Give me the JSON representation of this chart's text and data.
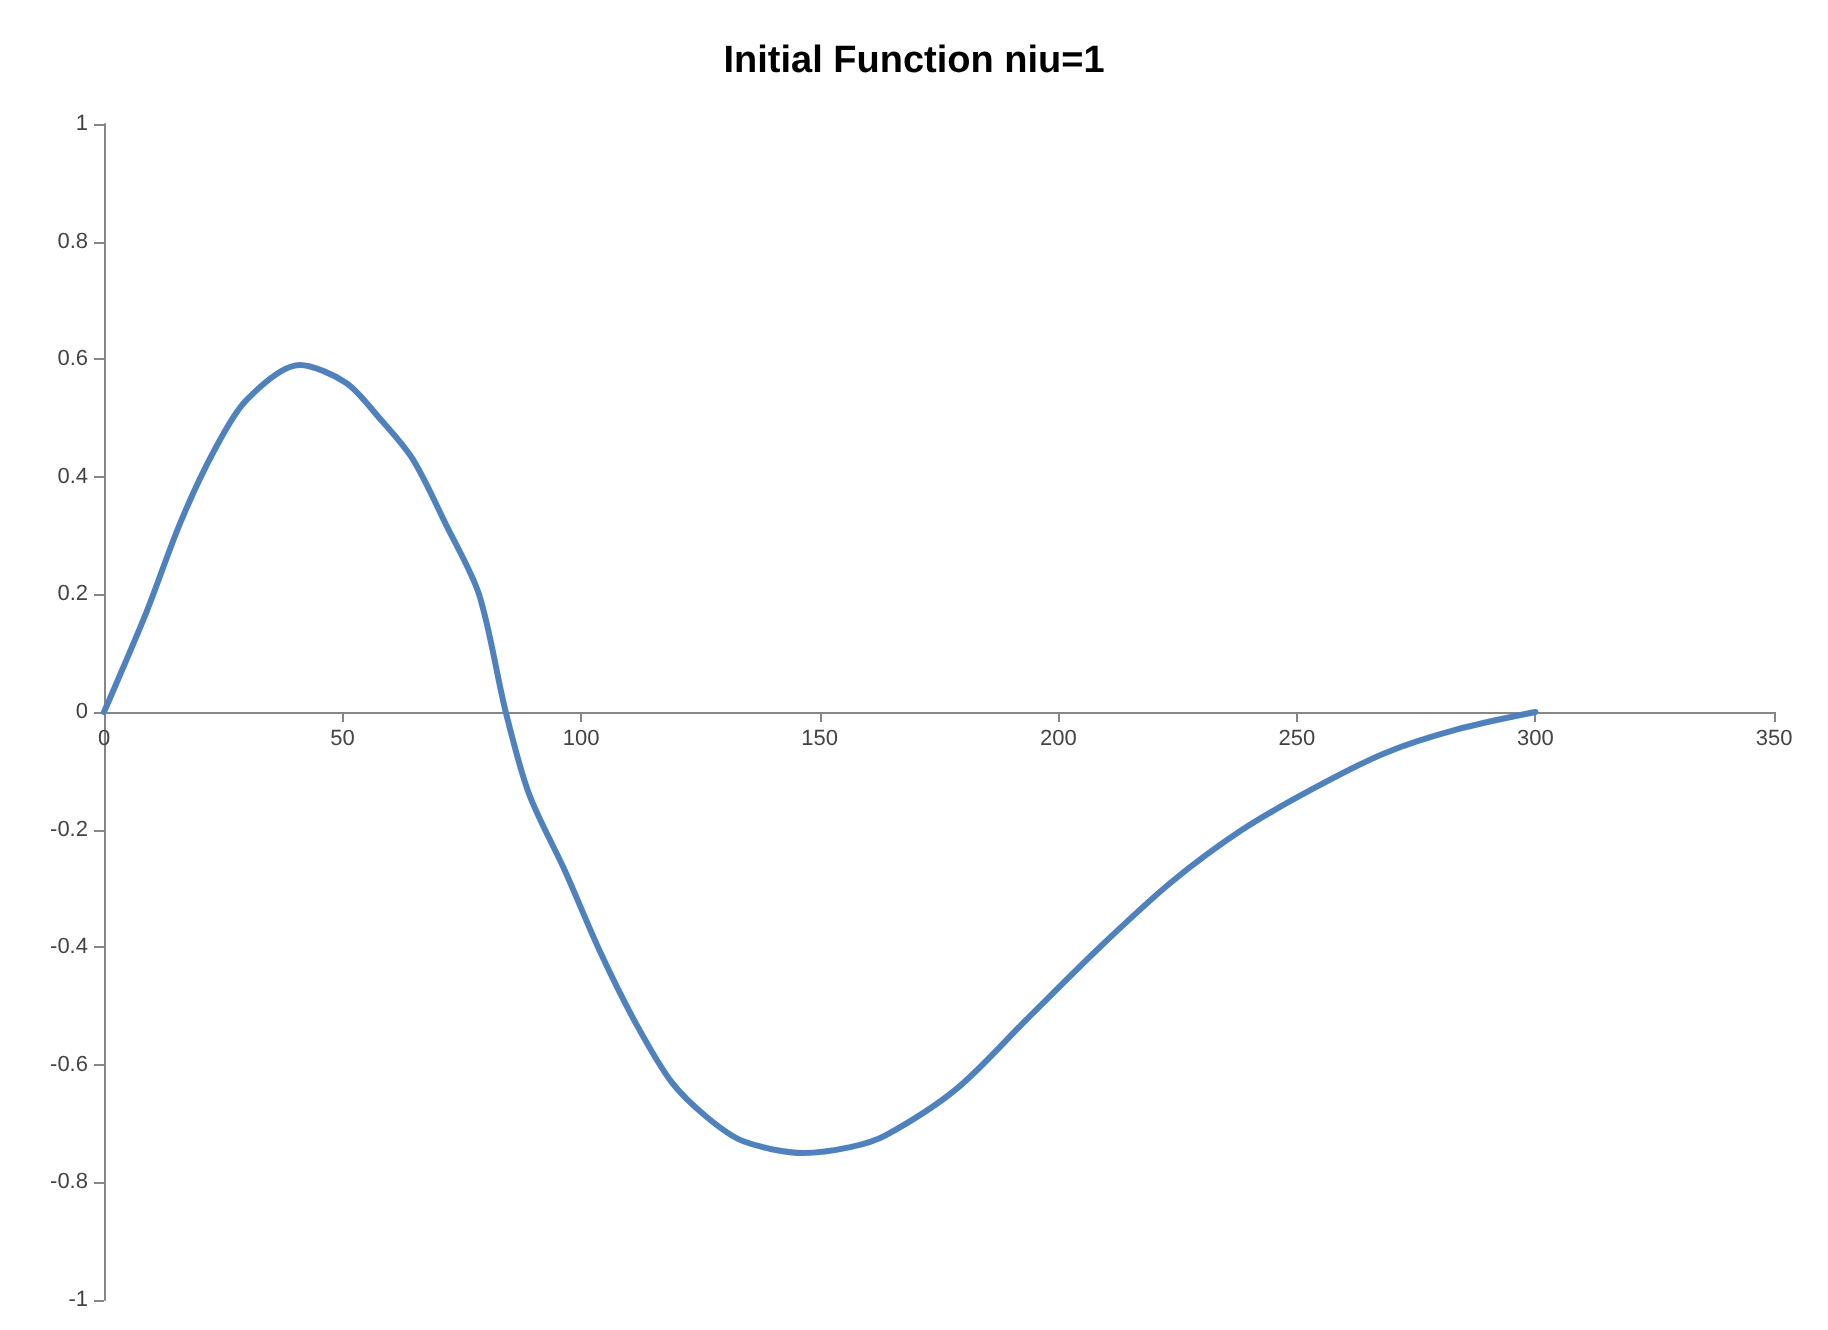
{
  "chart_data": {
    "type": "line",
    "title": "Initial Function niu=1",
    "x": [
      0,
      8.9,
      15.9,
      22.8,
      29.8,
      41,
      50.7,
      57.7,
      64.7,
      71.6,
      78.6,
      84.2,
      89.1,
      96.6,
      104.1,
      111.5,
      119,
      126.5,
      134,
      146.6,
      156.4,
      163.8,
      178.8,
      193.7,
      208.7,
      223.6,
      238.6,
      253.5,
      268.4,
      283.4,
      300
    ],
    "series": [
      {
        "color": "#4f81bd",
        "values": [
          0,
          0.17,
          0.32,
          0.44,
          0.53,
          0.59,
          0.56,
          0.5,
          0.43,
          0.32,
          0.2,
          0,
          -0.14,
          -0.27,
          -0.41,
          -0.53,
          -0.63,
          -0.69,
          -0.73,
          -0.75,
          -0.74,
          -0.72,
          -0.64,
          -0.52,
          -0.4,
          -0.29,
          -0.2,
          -0.13,
          -0.07,
          -0.03,
          0
        ]
      }
    ],
    "xlim": [
      0,
      350
    ],
    "xticks": [
      0,
      50,
      100,
      150,
      200,
      250,
      300,
      350
    ],
    "ylim": [
      -1,
      1
    ],
    "yticks": [
      -1,
      -0.8,
      -0.6,
      -0.4,
      -0.2,
      0,
      0.2,
      0.4,
      0.6,
      0.8,
      1
    ],
    "marker": "none",
    "line_style": "solid"
  }
}
